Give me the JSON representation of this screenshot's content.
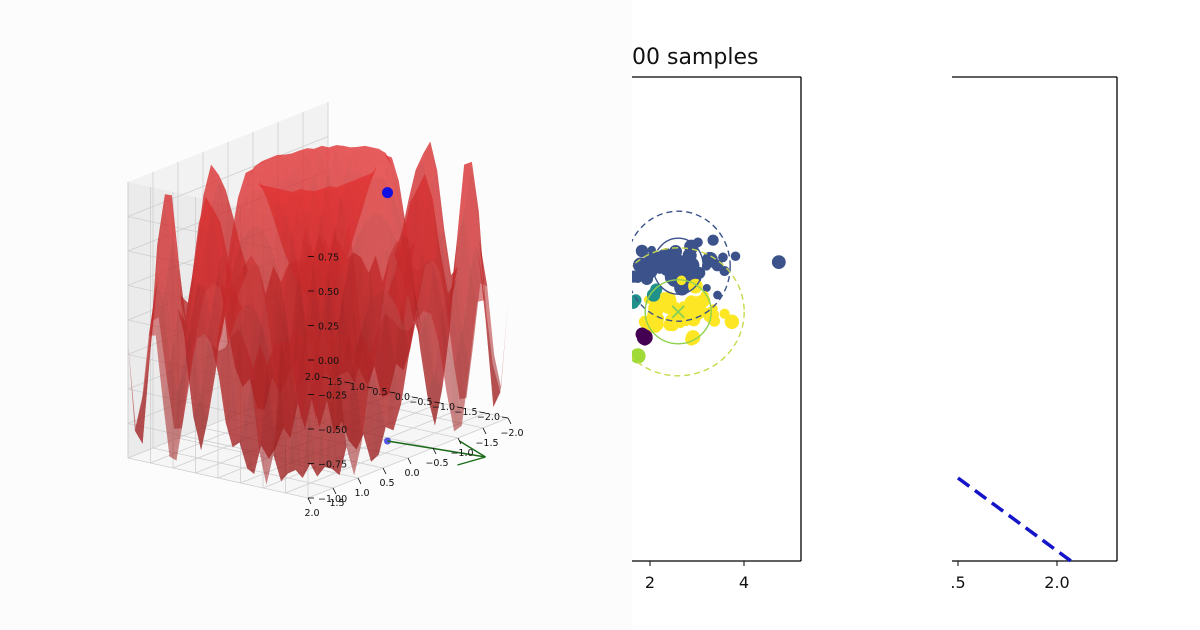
{
  "chart_data": [
    {
      "type": "surface3d",
      "x_ticks": [
        "−2.0",
        "−1.5",
        "−1.0",
        "−0.5",
        "0.0",
        "0.5",
        "1.0",
        "1.5",
        "2.0"
      ],
      "y_ticks": [
        "−2.0",
        "−1.5",
        "−1.0",
        "−0.5",
        "0.0",
        "0.5",
        "1.0",
        "1.5",
        "2.0"
      ],
      "z_ticks": [
        "0.75",
        "0.50",
        "0.25",
        "0.00",
        "−0.25",
        "−0.50",
        "−0.75",
        "−1.00"
      ],
      "xlim": [
        -2,
        2
      ],
      "ylim": [
        -2,
        2
      ],
      "zlim": [
        -1,
        1
      ],
      "colors": {
        "surface": "#e8393a",
        "point": "#1010e0",
        "arrow": "#1a6a1a"
      }
    },
    {
      "type": "scatter",
      "title": "00 samples",
      "x_ticks": [
        "2",
        "4"
      ],
      "clusters": [
        {
          "color": "#3b528b",
          "cx": 2.6,
          "cy": 2.2,
          "spread": 0.55,
          "n": 70
        },
        {
          "color": "#fde725",
          "cx": 2.6,
          "cy": 0.3,
          "spread": 0.55,
          "n": 60
        },
        {
          "color": "#440154",
          "cx": 1.7,
          "cy": -0.7,
          "spread": 0.25,
          "n": 10
        },
        {
          "color": "#21918c",
          "cx": 1.6,
          "cy": 0.9,
          "spread": 0.2,
          "n": 6
        },
        {
          "color": "#a0da39",
          "cx": 1.6,
          "cy": -1.8,
          "spread": 0.2,
          "n": 6
        }
      ],
      "centroid": {
        "x": 2.6,
        "y": 0.3,
        "color": "#8fd14f"
      },
      "ellipse_colors": {
        "blue": "#3b528b",
        "green": "#8fd14f",
        "yellow": "#c8d84b"
      }
    },
    {
      "type": "line",
      "x_ticks": [
        ".5",
        "2.0"
      ],
      "series": [
        {
          "style": "dashed",
          "color": "#1414c8",
          "x": [
            1.5,
            2.07
          ],
          "y": [
            0.35,
            -0.17
          ]
        }
      ]
    }
  ]
}
